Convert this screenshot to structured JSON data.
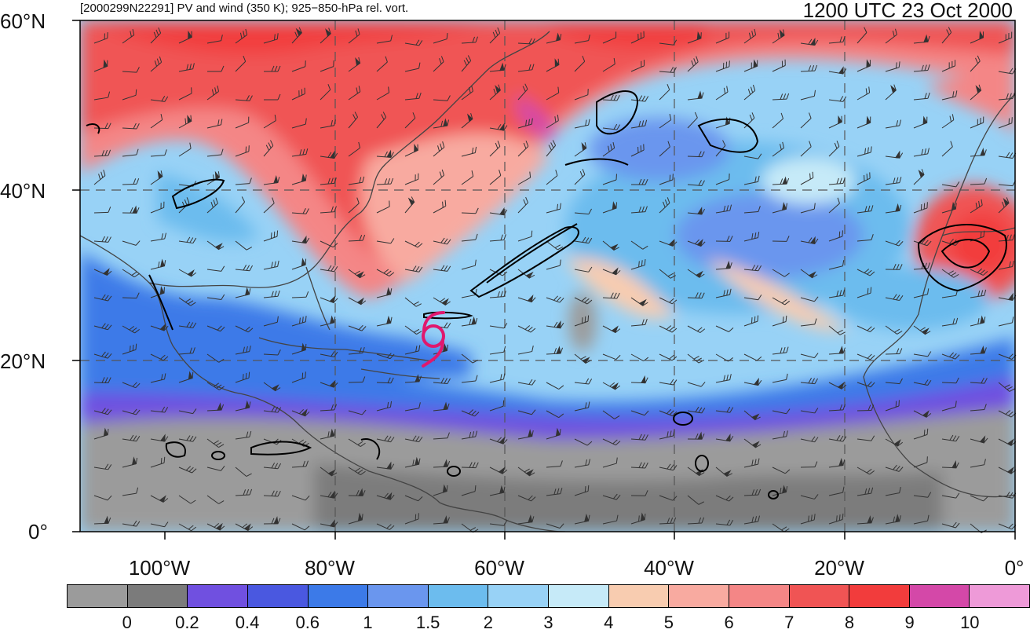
{
  "title_left": "[2000299N22291] PV and wind (350 K); 925−850-hPa rel. vort.",
  "title_right": "1200 UTC 23 Oct 2000",
  "lat_labels": [
    "60°N",
    "40°N",
    "20°N",
    "0°"
  ],
  "lon_labels": [
    "100°W",
    "80°W",
    "60°W",
    "40°W",
    "20°W",
    "0°"
  ],
  "colorbar": {
    "colors": [
      "#9b9b9b",
      "#7b7b7b",
      "#7050e0",
      "#4a58e0",
      "#3c7ae8",
      "#6a96ee",
      "#6cbcee",
      "#98d2f6",
      "#c6eaf8",
      "#f8ccb0",
      "#f8aaa0",
      "#f48686",
      "#f05454",
      "#f23c3c",
      "#d448a8",
      "#ee9ad8"
    ],
    "labels": [
      "0",
      "0.2",
      "0.4",
      "0.6",
      "1",
      "1.5",
      "2",
      "3",
      "4",
      "5",
      "6",
      "7",
      "8",
      "9",
      "10"
    ]
  },
  "storm_symbol_color": "#e0186e"
}
